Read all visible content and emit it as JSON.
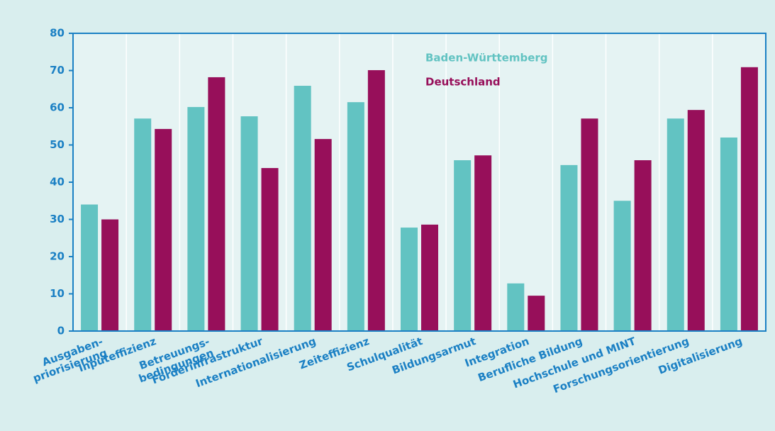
{
  "chart_data": {
    "type": "bar",
    "categories": [
      "Ausgaben-\npriorisierung",
      "Inputeffizienz",
      "Betreuungs-\nbedingungen",
      "Förderinfrastruktur",
      "Internationalisierung",
      "Zeiteffizienz",
      "Schulqualität",
      "Bildungsarmut",
      "Integration",
      "Berufliche Bildung",
      "Hochschule und MINT",
      "Forschungsorientierung",
      "Digitalisierung"
    ],
    "series": [
      {
        "name": "Baden-Württemberg",
        "color": "#62c3c2",
        "values": [
          34,
          57.1,
          60.2,
          57.7,
          65.9,
          61.5,
          27.8,
          45.9,
          12.8,
          44.6,
          35,
          57.1,
          52
        ]
      },
      {
        "name": "Deutschland",
        "color": "#970f5a",
        "values": [
          30,
          54.3,
          68.2,
          43.8,
          51.6,
          70.1,
          28.6,
          47.2,
          9.5,
          57.1,
          45.9,
          59.4,
          70.9
        ]
      }
    ],
    "ylim": [
      0,
      80
    ],
    "yticks": [
      0,
      10,
      20,
      30,
      40,
      50,
      60,
      70,
      80
    ],
    "grid": "x",
    "legend": "top"
  }
}
